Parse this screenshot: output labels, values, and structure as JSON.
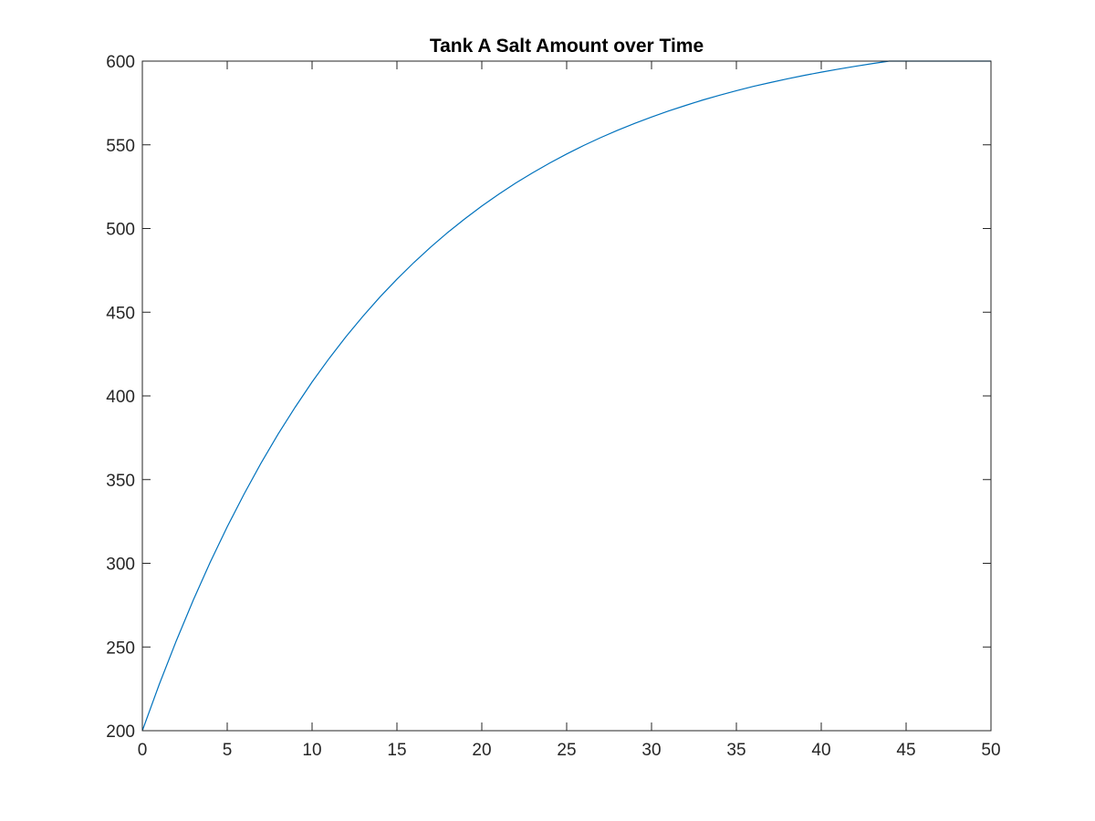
{
  "chart_data": {
    "type": "line",
    "title": "Tank A Salt Amount over Time",
    "xlabel": "",
    "ylabel": "",
    "xlim": [
      0,
      50
    ],
    "ylim": [
      200,
      600
    ],
    "xticks": [
      0,
      5,
      10,
      15,
      20,
      25,
      30,
      35,
      40,
      45,
      50
    ],
    "yticks": [
      200,
      250,
      300,
      350,
      400,
      450,
      500,
      550,
      600
    ],
    "grid": false,
    "line_color": "#0072bd",
    "series": [
      {
        "x": [
          0,
          1,
          2,
          3,
          4,
          5,
          6,
          7,
          8,
          9,
          10,
          11,
          12,
          13,
          14,
          15,
          16,
          17,
          18,
          19,
          20,
          21,
          22,
          23,
          24,
          25,
          26,
          27,
          28,
          29,
          30,
          31,
          32,
          33,
          34,
          35,
          36,
          37,
          38,
          39,
          40,
          41,
          42,
          43,
          44,
          45,
          46,
          47,
          48,
          49,
          50
        ],
        "values": [
          200.0,
          227.8,
          253.7,
          278.0,
          300.7,
          321.8,
          341.5,
          360.0,
          377.2,
          393.2,
          408.3,
          422.3,
          435.4,
          447.6,
          459.1,
          469.7,
          479.7,
          489.0,
          497.7,
          505.8,
          513.4,
          520.5,
          527.2,
          533.3,
          539.1,
          544.5,
          549.6,
          554.3,
          558.7,
          562.8,
          566.6,
          570.2,
          573.5,
          576.7,
          579.6,
          582.3,
          584.9,
          587.2,
          589.4,
          591.5,
          593.4,
          595.2,
          596.9,
          598.5,
          600.0,
          601.3,
          602.6,
          603.8,
          604.9,
          605.9,
          606.9
        ]
      }
    ]
  }
}
